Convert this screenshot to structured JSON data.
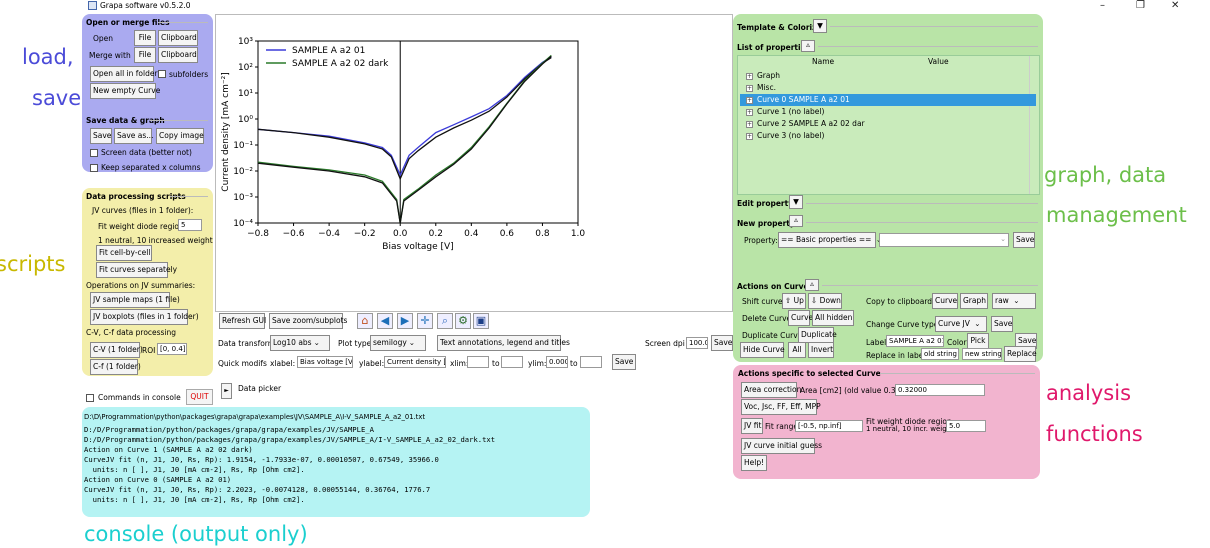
{
  "window": {
    "title": "Grapa software v0.5.2.0",
    "minimize": "–",
    "maximize": "❐",
    "close": "✕"
  },
  "annotations": {
    "load_save_1": "load,",
    "load_save_2": "save",
    "scripts": "scripts",
    "graph_data_1": "graph, data",
    "graph_data_2": "management",
    "analysis_1": "analysis",
    "analysis_2": "functions",
    "console": "console (output only)"
  },
  "colors": {
    "load_save": "#4b4bd8",
    "scripts": "#c8b800",
    "graph_data": "#6cbf4a",
    "analysis": "#e0186b",
    "console": "#1bcfcf"
  },
  "openmerge": {
    "header": "Open or merge files",
    "open": "Open",
    "file": "File",
    "clipboard": "Clipboard",
    "merge_with": "Merge with",
    "file2": "File",
    "clipboard2": "Clipboard",
    "open_all": "Open all in folder",
    "subfolders": "subfolders",
    "new_empty": "New empty Curve"
  },
  "save": {
    "header": "Save data & graph",
    "save": "Save",
    "save_as": "Save as...",
    "copy_image": "Copy image",
    "screen_data": "Screen data (better not)",
    "keep_sep": "Keep separated x columns"
  },
  "scripts": {
    "header": "Data processing scripts",
    "jv_curves": "JV curves (files in 1 folder):",
    "fit_weight": "Fit weight diode region",
    "fit_weight_val": "5",
    "neutral": "1 neutral, 10 increased weight",
    "fit_cell": "Fit cell-by-cell",
    "fit_separately": "Fit curves separately",
    "ops_jv": "Operations on JV summaries:",
    "jv_sample_maps": "JV sample maps (1 file)",
    "jv_boxplots": "JV boxplots (files in 1 folder)",
    "cv_cf": "C-V, C-f data processing",
    "cv": "C-V (1 folder)",
    "roi": "ROI",
    "roi_val": "[0, 0.4]",
    "cf": "C-f (1 folder)"
  },
  "console_opts": {
    "commands_in_console": "Commands in console",
    "quit": "QUIT"
  },
  "toolbar": {
    "refresh": "Refresh GUI",
    "save_zoom": "Save zoom/subplots",
    "data_transform": "Data transform",
    "data_transform_val": "Log10 abs",
    "plot_type": "Plot type",
    "plot_type_val": "semilogy",
    "text_annot": "Text annotations, legend and titles",
    "screen_dpi": "Screen dpi",
    "dpi_val": "100.0",
    "save_dpi": "Save",
    "quick_modifs": "Quick modifs",
    "xlabel": "xlabel:",
    "xlabel_val": "Bias voltage [V]",
    "ylabel": "ylabel:",
    "ylabel_val": "Current density [r",
    "xlim": "xlim:",
    "to": "to",
    "ylim": "ylim:",
    "ylim_val": "0.0001",
    "to2": "to",
    "save_quick": "Save",
    "data_picker": "Data picker",
    "play": "►"
  },
  "icons": {
    "home": "home-icon",
    "back": "back-arrow-icon",
    "forward": "forward-arrow-icon",
    "pan": "pan-icon",
    "zoom": "zoom-icon",
    "configure": "configure-subplots-icon",
    "savefig": "save-figure-icon"
  },
  "console": {
    "lines": [
      "D:\\D\\Programmation\\python\\packages\\grapa\\grapa\\examples\\JV\\SAMPLE_A\\I-V_SAMPLE_A_a2_01.txt",
      "D:/D/Programmation/python/packages/grapa/grapa/examples/JV/SAMPLE_A",
      "D:/D/Programmation/python/packages/grapa/grapa/examples/JV/SAMPLE_A/I-V_SAMPLE_A_a2_02_dark.txt",
      "Action on Curve 1 (SAMPLE A a2 02 dark)",
      "CurveJV fit (n, J1, J0, Rs, Rp): 1.9154, -1.7933e-07, 0.00010507, 0.67549, 35966.0",
      "  units: n [ ], J1, J0 [mA cm-2], Rs, Rp [Ohm cm2].",
      "Action on Curve 0 (SAMPLE A a2 01)",
      "CurveJV fit (n, J1, J0, Rs, Rp): 2.2023, -0.0074128, 0.00055144, 0.36764, 1776.7",
      "  units: n [ ], J1, J0 [mA cm-2], Rs, Rp [Ohm cm2]."
    ]
  },
  "right": {
    "template": "Template & Colorize",
    "list_props": "List of properties",
    "col_name": "Name",
    "col_value": "Value",
    "tree": [
      "Graph",
      "Misc.",
      "Curve 0 SAMPLE A a2 01",
      "Curve 1 (no label)",
      "Curve 2 SAMPLE A a2 02 dar",
      "Curve 3 (no label)"
    ],
    "selected_index": 2,
    "edit_property": "Edit property",
    "new_property": "New property",
    "property": "Property:",
    "property_val": "== Basic properties ==",
    "save_prop": "Save",
    "actions": "Actions on Curves",
    "shift_curve": "Shift curve",
    "up": "⇧ Up",
    "down": "⇩ Down",
    "copy_clip": "Copy to clipboard",
    "curve": "Curve",
    "graph": "Graph",
    "raw": "raw",
    "delete_curve": "Delete Curve",
    "curve2": "Curve",
    "all_hidden": "All hidden",
    "change_type": "Change Curve type",
    "curve_jv": "Curve JV",
    "save_type": "Save",
    "dup_curve": "Duplicate Curve",
    "duplicate": "Duplicate",
    "label": "Label",
    "label_val": "SAMPLE A a2 01",
    "color": "Color",
    "pick": "Pick",
    "save_label": "Save",
    "hide_curve": "Hide Curve",
    "all": "All",
    "invert": "Invert",
    "replace_in_labels": "Replace in labels",
    "old_string": "old string",
    "new_string": "new string",
    "replace": "Replace"
  },
  "analysis": {
    "header": "Actions specific to selected Curve",
    "area_corr": "Area correction",
    "area_lbl": "Area [cm2] (old value 0.320)",
    "area_val": "0.32000",
    "voc": "Voc, Jsc, FF, Eff, MPP",
    "jv_fit": "JV fit",
    "fit_range": "Fit range",
    "fit_range_val": "[-0.5, np.inf]",
    "fit_weight": "Fit weight diode region",
    "fit_weight_sub": "1 neutral, 10 incr. weight",
    "fit_weight_val": "5.0",
    "jv_initial": "JV curve initial guess",
    "help": "Help!"
  },
  "chart_data": {
    "type": "line",
    "xlabel": "Bias voltage [V]",
    "ylabel": "Current density [mA cm⁻²]",
    "xlim": [
      -0.8,
      1.0
    ],
    "ylim_exp": [
      -4,
      3
    ],
    "y_scale": "log",
    "xticks": [
      "−0.8",
      "−0.6",
      "−0.4",
      "−0.2",
      "0.0",
      "0.2",
      "0.4",
      "0.6",
      "0.8",
      "1.0"
    ],
    "ytick_labels": [
      "10³",
      "10²",
      "10¹",
      "10⁰",
      "10⁻¹",
      "10⁻²",
      "10⁻³",
      "10⁻⁴"
    ],
    "legend_position": "top-left",
    "series": [
      {
        "name": "SAMPLE A a2 01",
        "color": "#3b3bd9",
        "x": [
          -0.8,
          -0.6,
          -0.4,
          -0.2,
          -0.1,
          -0.05,
          0.0,
          0.05,
          0.1,
          0.2,
          0.3,
          0.4,
          0.5,
          0.6,
          0.7,
          0.8,
          0.85
        ],
        "y": [
          0.4,
          0.3,
          0.22,
          0.12,
          0.08,
          0.04,
          0.007,
          0.04,
          0.08,
          0.3,
          0.6,
          1.2,
          2.5,
          8,
          40,
          150,
          250
        ]
      },
      {
        "name": "",
        "color": "#111111",
        "x": [
          -0.8,
          -0.6,
          -0.4,
          -0.2,
          -0.1,
          -0.05,
          0.0,
          0.05,
          0.1,
          0.2,
          0.3,
          0.4,
          0.5,
          0.6,
          0.7,
          0.8,
          0.85
        ],
        "y": [
          0.4,
          0.3,
          0.2,
          0.11,
          0.07,
          0.035,
          0.005,
          0.03,
          0.06,
          0.2,
          0.45,
          0.9,
          2,
          7,
          35,
          140,
          230
        ]
      },
      {
        "name": "SAMPLE A a2 02 dark",
        "color": "#2a7a2a",
        "x": [
          -0.8,
          -0.6,
          -0.4,
          -0.2,
          -0.1,
          -0.02,
          0.0,
          0.02,
          0.1,
          0.2,
          0.3,
          0.4,
          0.5,
          0.6,
          0.7,
          0.8,
          0.85
        ],
        "y": [
          0.022,
          0.015,
          0.011,
          0.007,
          0.004,
          0.0008,
          0.0001,
          0.0008,
          0.002,
          0.007,
          0.02,
          0.08,
          0.5,
          4,
          30,
          140,
          280
        ]
      },
      {
        "name": "",
        "color": "#111111",
        "x": [
          -0.8,
          -0.6,
          -0.4,
          -0.2,
          -0.1,
          -0.02,
          0.0,
          0.02,
          0.1,
          0.2,
          0.3,
          0.4,
          0.5,
          0.6,
          0.7,
          0.8,
          0.85
        ],
        "y": [
          0.02,
          0.014,
          0.01,
          0.006,
          0.0035,
          0.0007,
          0.0001,
          0.0007,
          0.0018,
          0.006,
          0.018,
          0.07,
          0.45,
          3.8,
          28,
          130,
          260
        ]
      }
    ]
  }
}
